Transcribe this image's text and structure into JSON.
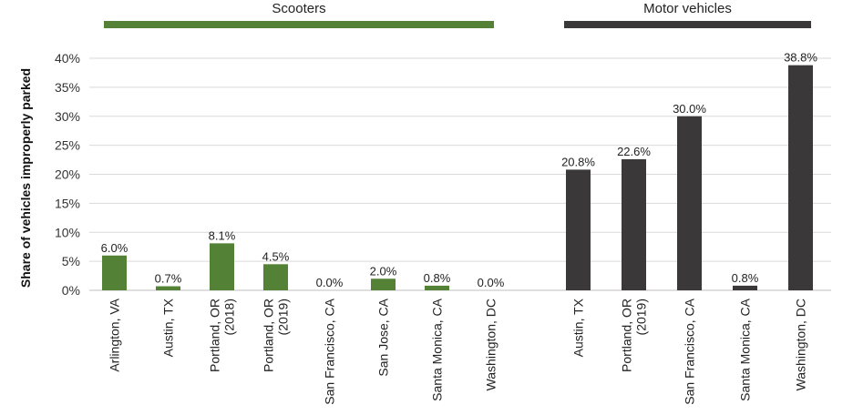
{
  "chart_data": {
    "type": "bar",
    "ylabel": "Share of vehicles improperly parked",
    "ylim": [
      0,
      40
    ],
    "yticks": [
      0,
      5,
      10,
      15,
      20,
      25,
      30,
      35,
      40
    ],
    "ytick_labels": [
      "0%",
      "5%",
      "10%",
      "15%",
      "20%",
      "25%",
      "30%",
      "35%",
      "40%"
    ],
    "grid": true,
    "groups": [
      {
        "name": "Scooters",
        "color": "#538135",
        "categories": [
          [
            "Arlington, VA"
          ],
          [
            "Austin, TX"
          ],
          [
            "Portland, OR",
            "(2018)"
          ],
          [
            "Portland, OR",
            "(2019)"
          ],
          [
            "San Francisco, CA"
          ],
          [
            "San Jose, CA"
          ],
          [
            "Santa Monica, CA"
          ],
          [
            "Washington, DC"
          ]
        ],
        "values": [
          6.0,
          0.7,
          8.1,
          4.5,
          0.0,
          2.0,
          0.8,
          0.0
        ],
        "data_labels": [
          "6.0%",
          "0.7%",
          "8.1%",
          "4.5%",
          "0.0%",
          "2.0%",
          "0.8%",
          "0.0%"
        ]
      },
      {
        "name": "Motor vehicles",
        "color": "#3a3838",
        "categories": [
          [
            "Austin, TX"
          ],
          [
            "Portland, OR",
            "(2019)"
          ],
          [
            "San Francisco, CA"
          ],
          [
            "Santa Monica, CA"
          ],
          [
            "Washington, DC"
          ]
        ],
        "values": [
          20.8,
          22.6,
          30.0,
          0.8,
          38.8
        ],
        "data_labels": [
          "20.8%",
          "22.6%",
          "30.0%",
          "0.8%",
          "38.8%"
        ]
      }
    ]
  }
}
